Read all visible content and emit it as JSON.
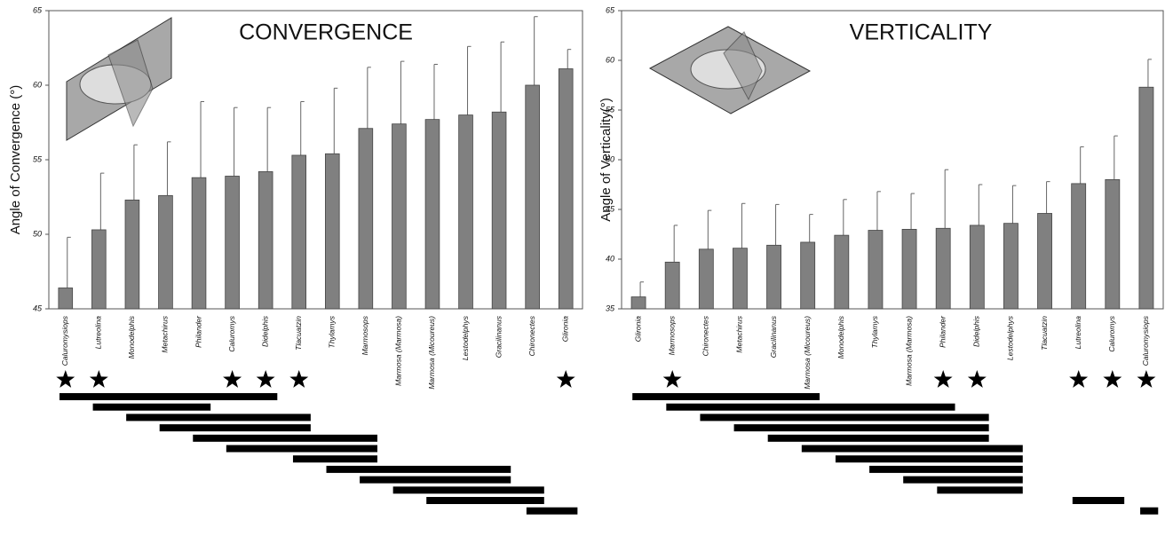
{
  "chart_data": [
    {
      "type": "bar",
      "title": "CONVERGENCE",
      "y_label": "Angle of Convergence (°)",
      "categories": [
        "Caluromysiops",
        "Lutreolina",
        "Monodelphis",
        "Metachirus",
        "Philander",
        "Caluromys",
        "Didelphis",
        "Tlacuatzin",
        "Thylamys",
        "Marmosops",
        "Marmosa (Marmosa)",
        "Marmosa (Micoureus)",
        "Lestodelphys",
        "Gracilinanus",
        "Chironectes",
        "Glironia"
      ],
      "values": [
        46.4,
        50.3,
        52.3,
        52.6,
        53.8,
        53.9,
        54.2,
        55.3,
        55.4,
        57.1,
        57.4,
        57.7,
        58.0,
        58.2,
        60.0,
        61.1
      ],
      "errors": [
        3.4,
        3.8,
        3.7,
        3.6,
        5.1,
        4.6,
        4.3,
        3.6,
        4.4,
        4.1,
        4.2,
        3.7,
        4.6,
        4.7,
        4.6,
        1.3
      ],
      "significant": [
        true,
        true,
        false,
        false,
        false,
        true,
        true,
        true,
        false,
        false,
        false,
        false,
        false,
        false,
        false,
        true
      ],
      "subsets": [
        [
          0,
          6
        ],
        [
          1,
          4
        ],
        [
          2,
          7
        ],
        [
          3,
          7
        ],
        [
          4,
          9
        ],
        [
          5,
          9
        ],
        [
          7,
          9
        ],
        [
          8,
          13
        ],
        [
          9,
          13
        ],
        [
          10,
          14
        ],
        [
          11,
          14
        ],
        [
          14,
          15
        ]
      ],
      "color": "#808080",
      "ylim": [
        45,
        65
      ],
      "yticks": [
        45,
        50,
        55,
        60,
        65
      ]
    },
    {
      "type": "bar",
      "title": "VERTICALITY",
      "y_label": "Angle of Verticality(°)",
      "categories": [
        "Glironia",
        "Marmosops",
        "Chironectes",
        "Metachirus",
        "Gracilinanus",
        "Marmosa (Micoureus)",
        "Monodelphis",
        "Thylamys",
        "Marmosa (Marmosa)",
        "Philander",
        "Didelphis",
        "Lestodelphys",
        "Tlacuatzin",
        "Lutreolina",
        "Caluromys",
        "Caluromysiops"
      ],
      "values": [
        36.2,
        39.7,
        41.0,
        41.1,
        41.4,
        41.7,
        42.4,
        42.9,
        43.0,
        43.1,
        43.4,
        43.6,
        44.6,
        47.6,
        48.0,
        57.3
      ],
      "errors": [
        1.5,
        3.7,
        3.9,
        4.5,
        4.1,
        2.8,
        3.6,
        3.9,
        3.6,
        5.9,
        4.1,
        3.8,
        3.2,
        3.7,
        4.4,
        2.8
      ],
      "significant": [
        false,
        true,
        false,
        false,
        false,
        false,
        false,
        false,
        false,
        true,
        true,
        false,
        false,
        true,
        true,
        true
      ],
      "subsets": [
        [
          0,
          5
        ],
        [
          1,
          9
        ],
        [
          2,
          10
        ],
        [
          3,
          10
        ],
        [
          4,
          10
        ],
        [
          5,
          11
        ],
        [
          6,
          11
        ],
        [
          7,
          11
        ],
        [
          8,
          11
        ],
        [
          9,
          11
        ],
        [
          13,
          14
        ],
        [
          15,
          15
        ]
      ],
      "color": "#808080",
      "ylim": [
        35,
        65
      ],
      "yticks": [
        35,
        40,
        45,
        50,
        55,
        60,
        65
      ]
    }
  ]
}
